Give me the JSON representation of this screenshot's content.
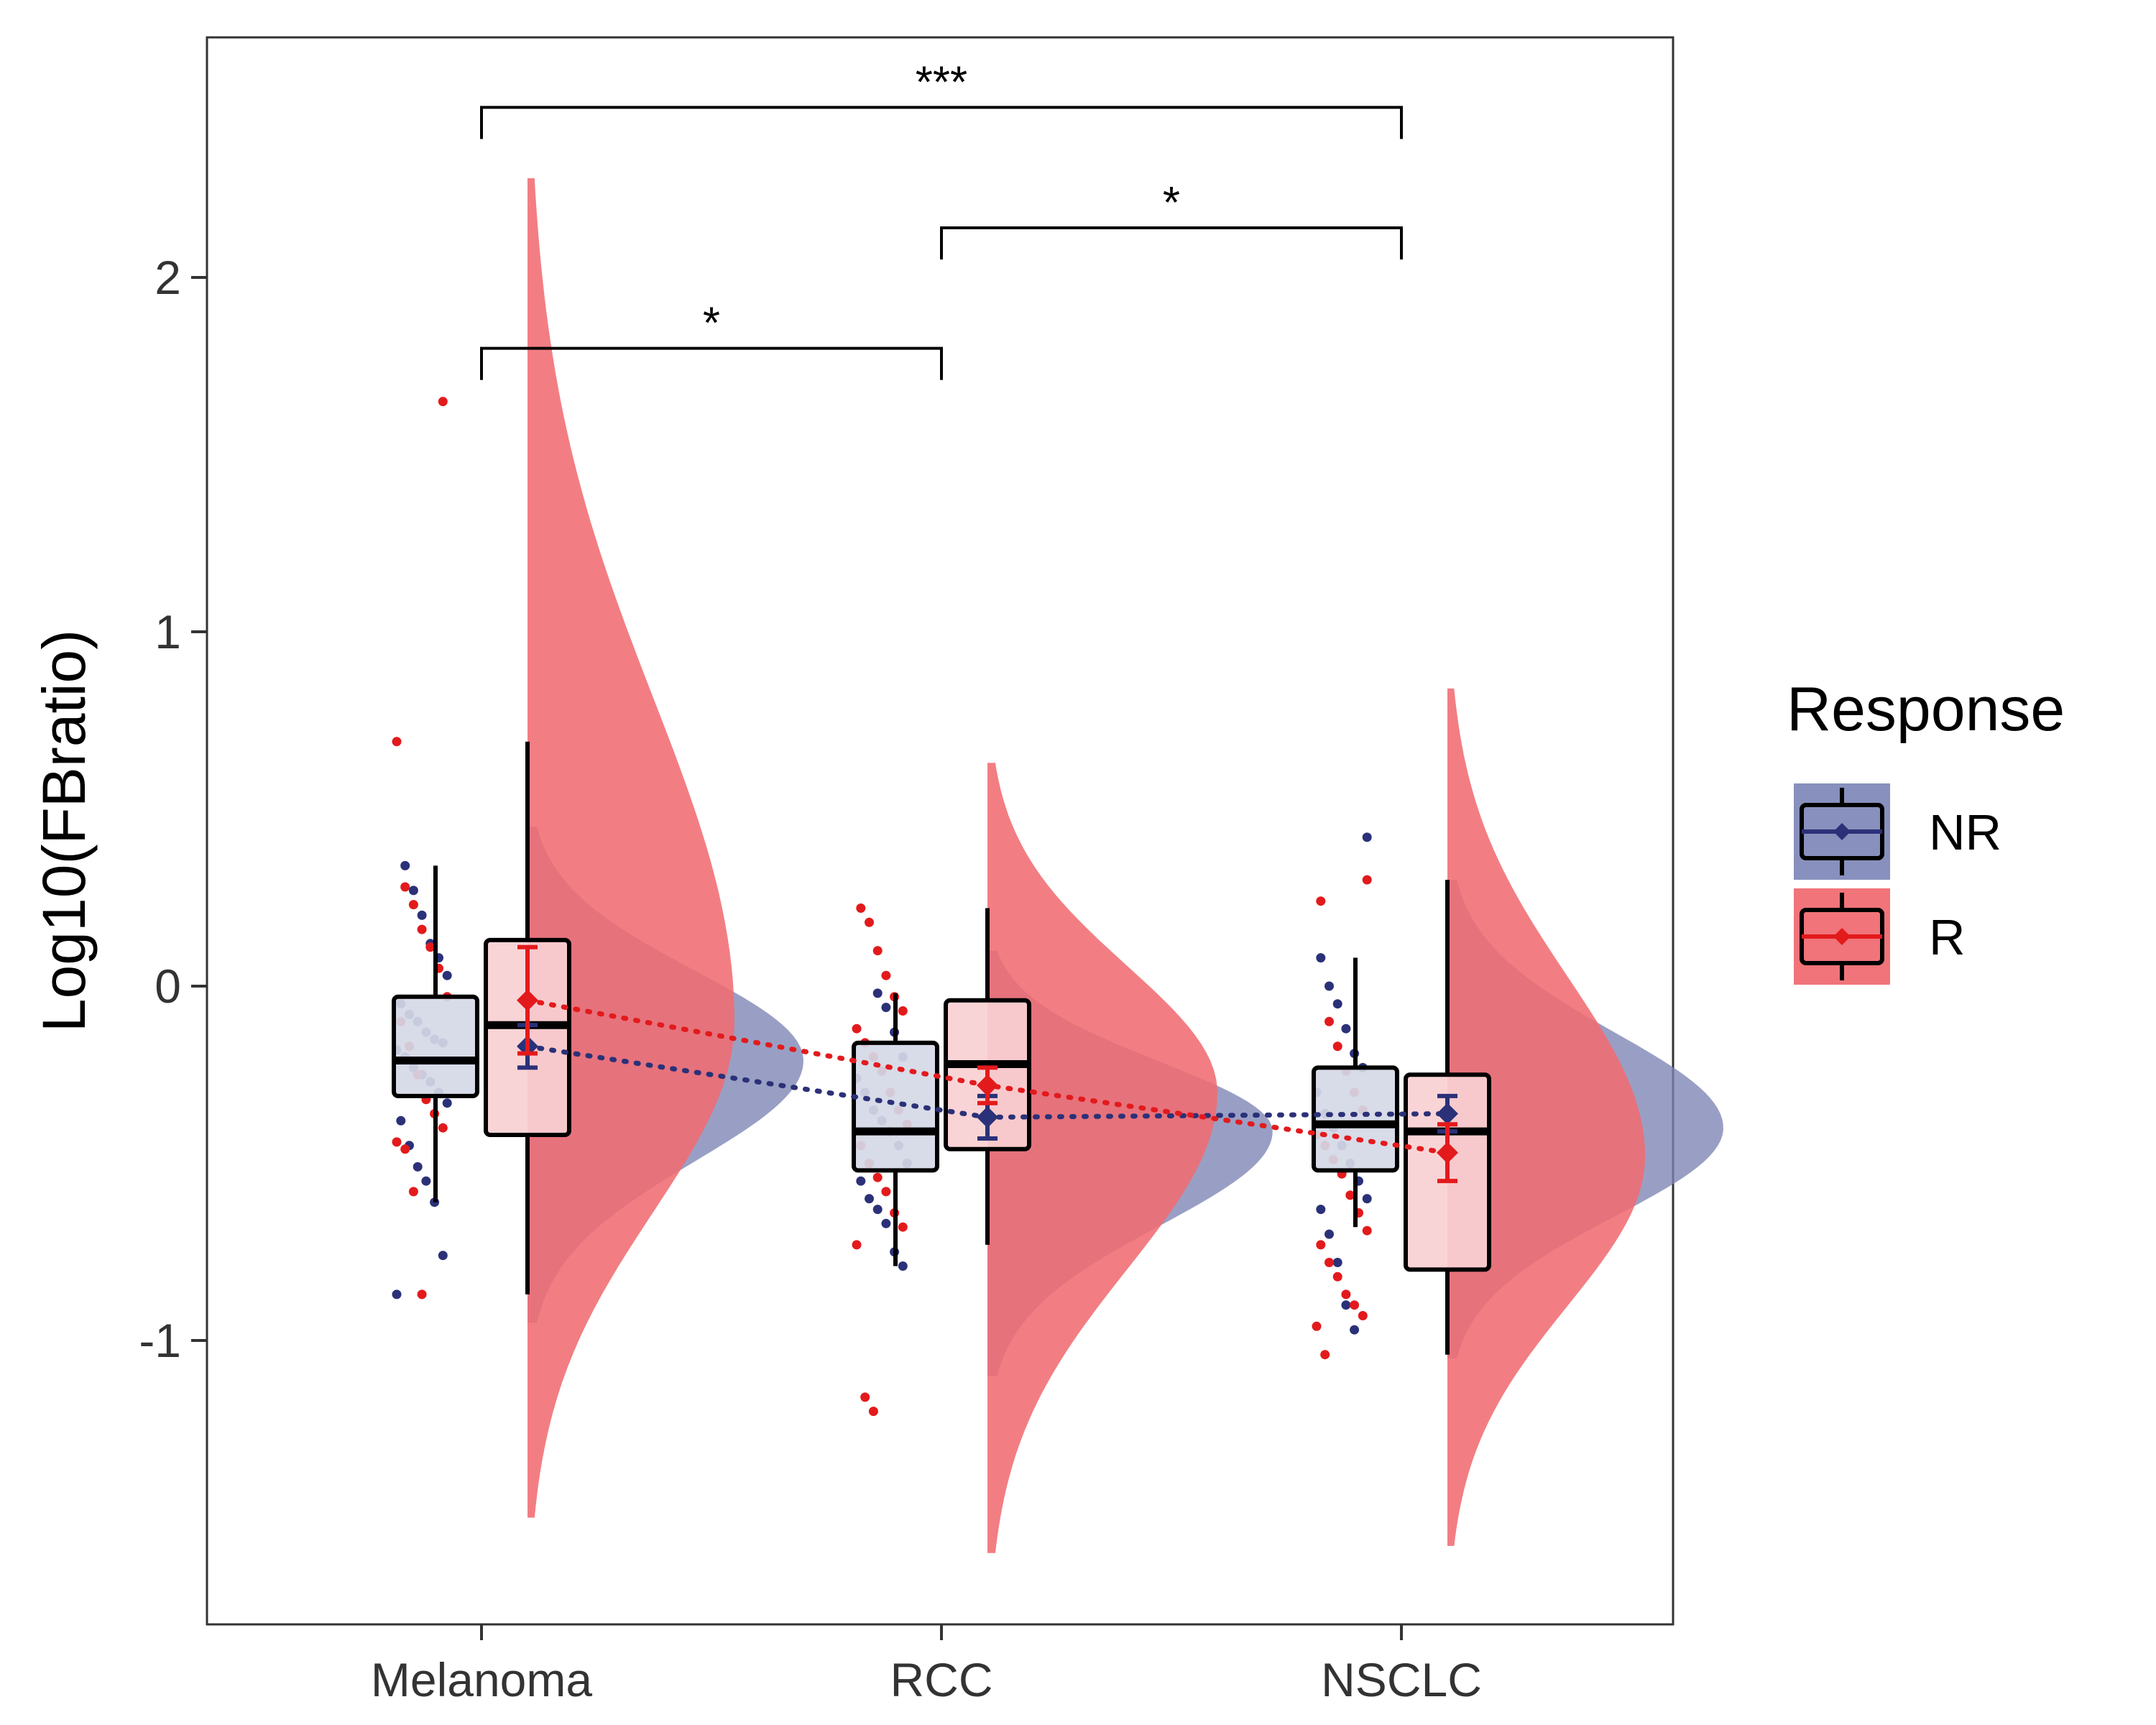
{
  "chart_data": {
    "type": "box",
    "ylabel": "Log10(FBratio)",
    "xlabel": "",
    "ylim": [
      -1.8,
      2.7
    ],
    "yticks": [
      "-1",
      "0",
      "1",
      "2"
    ],
    "ytick_values": [
      -1,
      0,
      1,
      2
    ],
    "categories": [
      "Melanoma",
      "RCC",
      "NSCLC"
    ],
    "legend": {
      "title": "Response",
      "position": "right",
      "entries": [
        {
          "label": "NR",
          "fill": "#8890bd",
          "line": "#2b3178"
        },
        {
          "label": "R",
          "fill": "#f0747a",
          "line": "#e31a1c"
        }
      ]
    },
    "series": [
      {
        "name": "NR",
        "color": "#2b3178",
        "box_fill": "#d5d8e6",
        "density_fill": "#7c84b3",
        "boxes": [
          {
            "q1": -0.31,
            "median": -0.21,
            "q3": -0.03,
            "whisker_low": -0.61,
            "whisker_high": 0.34,
            "mean": -0.17,
            "ci_low": -0.23,
            "ci_high": -0.11
          },
          {
            "q1": -0.52,
            "median": -0.41,
            "q3": -0.16,
            "whisker_low": -0.79,
            "whisker_high": -0.02,
            "mean": -0.37,
            "ci_low": -0.43,
            "ci_high": -0.31
          },
          {
            "q1": -0.52,
            "median": -0.39,
            "q3": -0.23,
            "whisker_low": -0.68,
            "whisker_high": 0.08,
            "mean": -0.36,
            "ci_low": -0.41,
            "ci_high": -0.31
          }
        ],
        "density": [
          {
            "min": -0.95,
            "mode": -0.21,
            "max": 0.45,
            "width": 0.6
          },
          {
            "min": -1.1,
            "mode": -0.41,
            "max": 0.1,
            "width": 0.62
          },
          {
            "min": -1.05,
            "mode": -0.4,
            "max": 0.3,
            "width": 0.6
          }
        ],
        "points": [
          [
            -0.87,
            -0.76,
            -0.61,
            -0.55,
            -0.51,
            -0.45,
            -0.38,
            -0.33,
            -0.3,
            -0.27,
            -0.25,
            -0.23,
            -0.2,
            -0.18,
            -0.16,
            -0.15,
            -0.13,
            -0.1,
            -0.08,
            -0.05,
            0.03,
            0.08,
            0.12,
            0.2,
            0.27,
            0.34
          ],
          [
            -0.79,
            -0.75,
            -0.67,
            -0.63,
            -0.6,
            -0.55,
            -0.5,
            -0.45,
            -0.41,
            -0.38,
            -0.35,
            -0.3,
            -0.26,
            -0.2,
            -0.13,
            -0.06,
            -0.02
          ],
          [
            -0.97,
            -0.9,
            -0.78,
            -0.7,
            -0.63,
            -0.6,
            -0.55,
            -0.5,
            -0.45,
            -0.4,
            -0.36,
            -0.3,
            -0.23,
            -0.19,
            -0.12,
            -0.05,
            0.0,
            0.08,
            0.42
          ]
        ]
      },
      {
        "name": "R",
        "color": "#e31a1c",
        "box_fill": "#f8d0d3",
        "density_fill": "#f06c72",
        "boxes": [
          {
            "q1": -0.42,
            "median": -0.11,
            "q3": 0.13,
            "whisker_low": -0.87,
            "whisker_high": 0.69,
            "mean": -0.04,
            "ci_low": -0.19,
            "ci_high": 0.11
          },
          {
            "q1": -0.46,
            "median": -0.22,
            "q3": -0.04,
            "whisker_low": -0.73,
            "whisker_high": 0.22,
            "mean": -0.28,
            "ci_low": -0.33,
            "ci_high": -0.23
          },
          {
            "q1": -0.8,
            "median": -0.41,
            "q3": -0.25,
            "whisker_low": -1.04,
            "whisker_high": 0.3,
            "mean": -0.47,
            "ci_low": -0.55,
            "ci_high": -0.39
          }
        ],
        "density": [
          {
            "min": -1.5,
            "mode": -0.1,
            "max": 2.28,
            "width": 0.45
          },
          {
            "min": -1.6,
            "mode": -0.3,
            "max": 0.63,
            "width": 0.5
          },
          {
            "min": -1.58,
            "mode": -0.48,
            "max": 0.84,
            "width": 0.43
          }
        ],
        "points": [
          [
            -0.87,
            -0.58,
            -0.46,
            -0.44,
            -0.4,
            -0.36,
            -0.32,
            -0.25,
            -0.17,
            -0.1,
            -0.03,
            0.05,
            0.11,
            0.16,
            0.23,
            0.28,
            0.69,
            1.65
          ],
          [
            -1.2,
            -1.16,
            -0.73,
            -0.68,
            -0.64,
            -0.58,
            -0.54,
            -0.5,
            -0.45,
            -0.39,
            -0.35,
            -0.3,
            -0.24,
            -0.2,
            -0.16,
            -0.12,
            -0.07,
            -0.03,
            0.03,
            0.1,
            0.18,
            0.22
          ],
          [
            -1.04,
            -0.96,
            -0.93,
            -0.9,
            -0.87,
            -0.82,
            -0.78,
            -0.73,
            -0.69,
            -0.64,
            -0.59,
            -0.53,
            -0.49,
            -0.45,
            -0.42,
            -0.35,
            -0.3,
            -0.24,
            -0.17,
            -0.1,
            0.24,
            0.3
          ]
        ]
      }
    ],
    "comparisons": [
      {
        "group1": "Melanoma",
        "group2": "RCC",
        "label": "*",
        "y": 1.8
      },
      {
        "group1": "RCC",
        "group2": "NSCLC",
        "label": "*",
        "y": 2.14
      },
      {
        "group1": "Melanoma",
        "group2": "NSCLC",
        "label": "***",
        "y": 2.48
      }
    ]
  }
}
